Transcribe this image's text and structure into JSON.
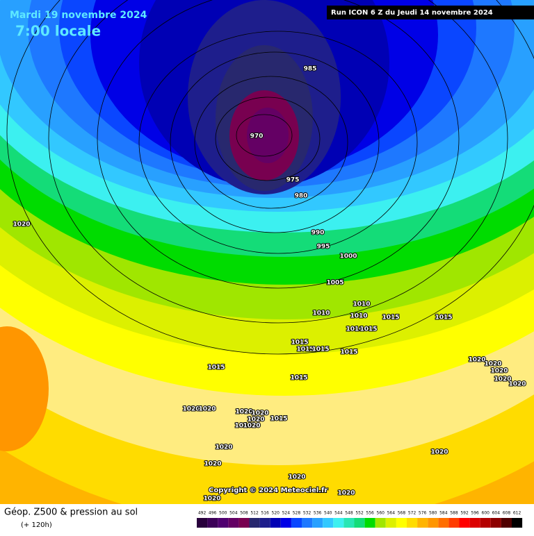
{
  "header": {
    "date": "Mardi 19 novembre 2024",
    "time": "7:00 locale",
    "run": "Run ICON 6 Z du Jeudi 14 novembre 2024"
  },
  "isobar_labels": [
    "985",
    "970",
    "975",
    "980",
    "990",
    "995",
    "1000",
    "1005",
    "1010",
    "1010",
    "1010",
    "1015",
    "1015",
    "1010",
    "1015",
    "1015",
    "1015",
    "1015",
    "1015",
    "1015",
    "1015",
    "1020",
    "1020",
    "1020",
    "1020",
    "1020",
    "1020",
    "1010",
    "1020",
    "1015",
    "1020",
    "1020",
    "1020",
    "1020",
    "1020",
    "1020",
    "1020",
    "1020",
    "1020",
    "1020",
    "1020"
  ],
  "copyright": "Copyright © 2024 Meteociel.fr",
  "footer": {
    "title": "Géop. Z500 & pression au sol",
    "lead": "(+ 120h)"
  },
  "legend": {
    "values": [
      492,
      496,
      500,
      504,
      508,
      512,
      516,
      520,
      524,
      528,
      532,
      536,
      540,
      544,
      548,
      552,
      556,
      560,
      564,
      568,
      572,
      576,
      580,
      584,
      588,
      592,
      596,
      600,
      604,
      608,
      612
    ],
    "colors": [
      "#28003c",
      "#3c0058",
      "#500070",
      "#640064",
      "#780050",
      "#28286e",
      "#1e1e8c",
      "#0000b4",
      "#0000e6",
      "#0a46ff",
      "#1e78ff",
      "#28a0ff",
      "#32c8ff",
      "#3cf0f0",
      "#28e6b4",
      "#14dc78",
      "#00dc00",
      "#a0e600",
      "#dcf000",
      "#ffff00",
      "#ffdc00",
      "#ffb400",
      "#ff9600",
      "#ff6e00",
      "#ff3c00",
      "#ff0000",
      "#dc0000",
      "#b40000",
      "#8c0000",
      "#500000",
      "#000000"
    ]
  }
}
